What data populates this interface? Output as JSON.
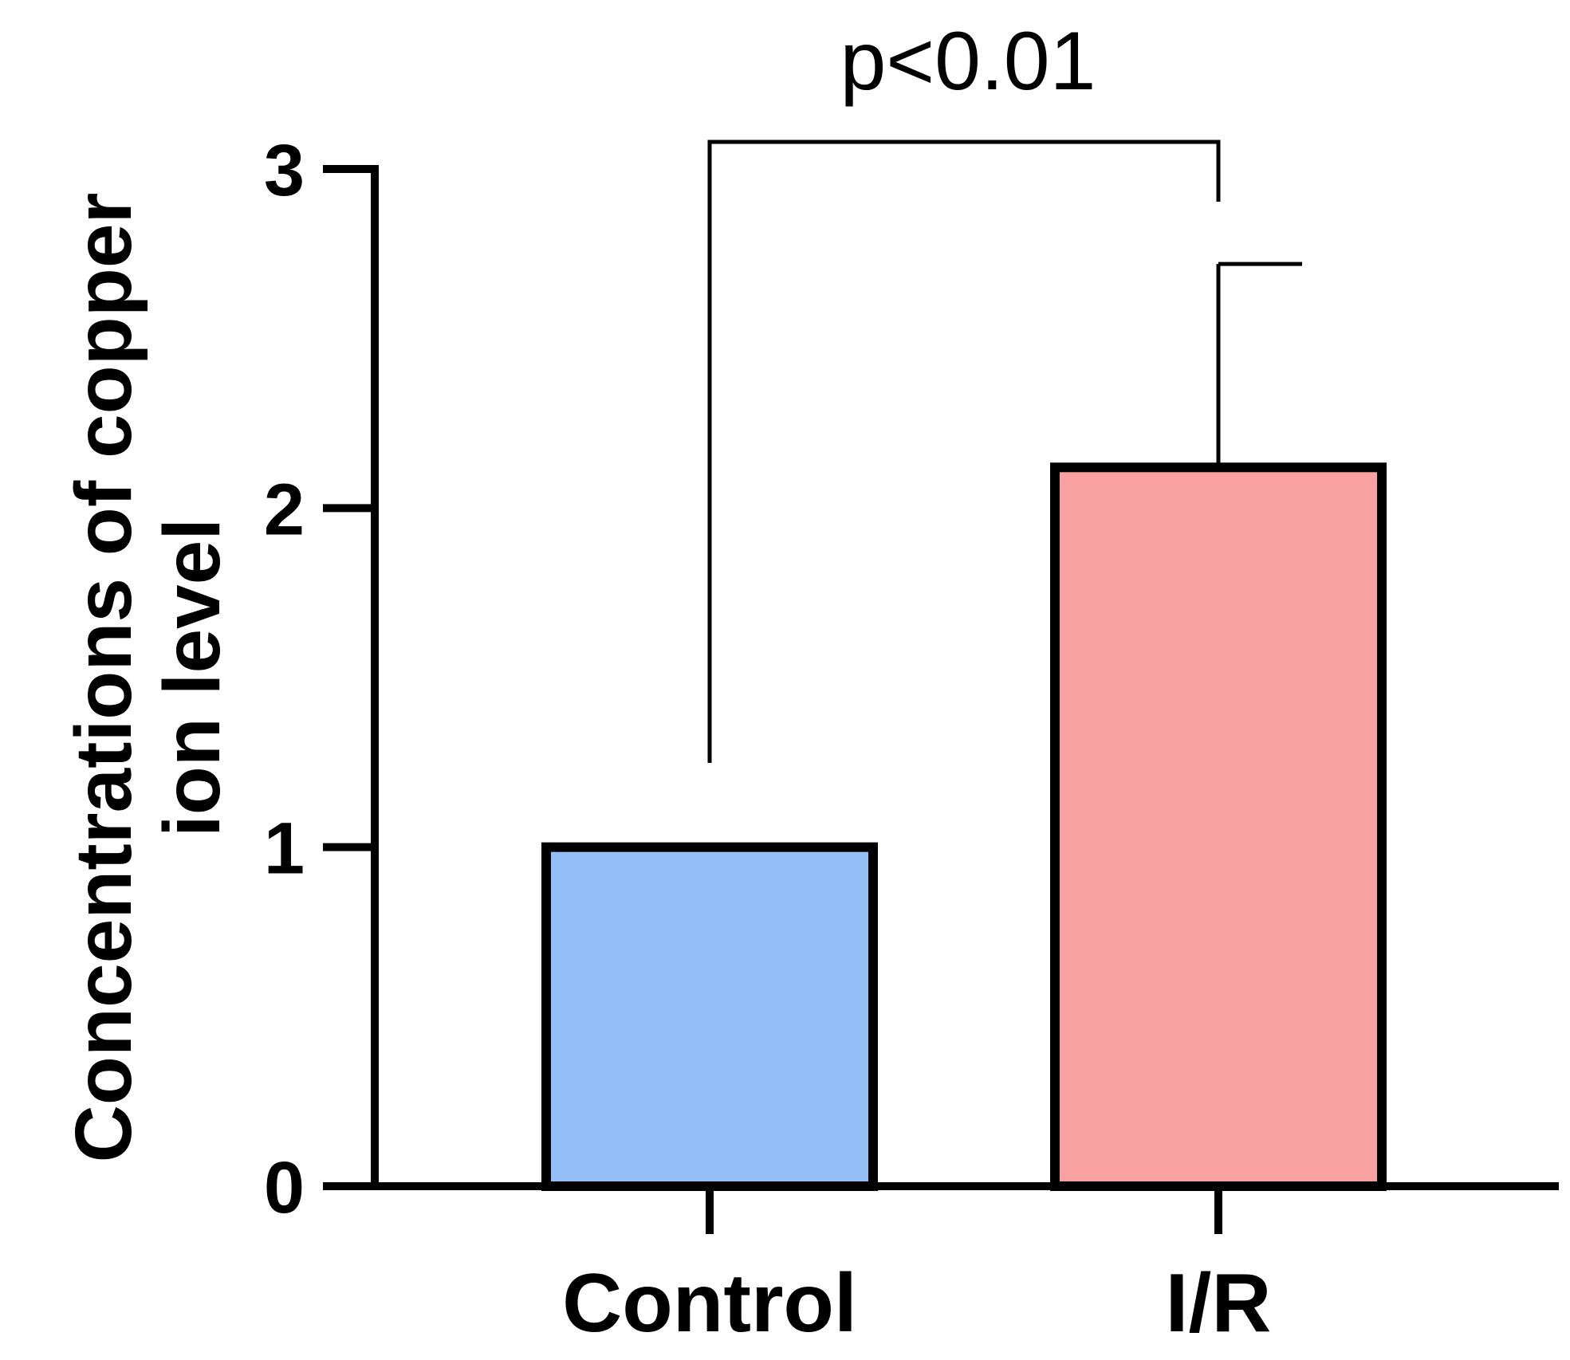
{
  "chart_data": {
    "type": "bar",
    "title": "",
    "xlabel": "",
    "ylabel_lines": [
      "Concentrations of copper",
      "ion level"
    ],
    "ylim": [
      0,
      3
    ],
    "yticks": [
      0,
      1,
      2,
      3
    ],
    "categories": [
      "Control",
      "I/R"
    ],
    "values": [
      1.0,
      2.12
    ],
    "error_upper": [
      0,
      0.6
    ],
    "colors": [
      "#93bff6",
      "#f9a0a0"
    ],
    "significance": {
      "text": "p<0.01",
      "between": [
        0,
        1
      ]
    }
  }
}
